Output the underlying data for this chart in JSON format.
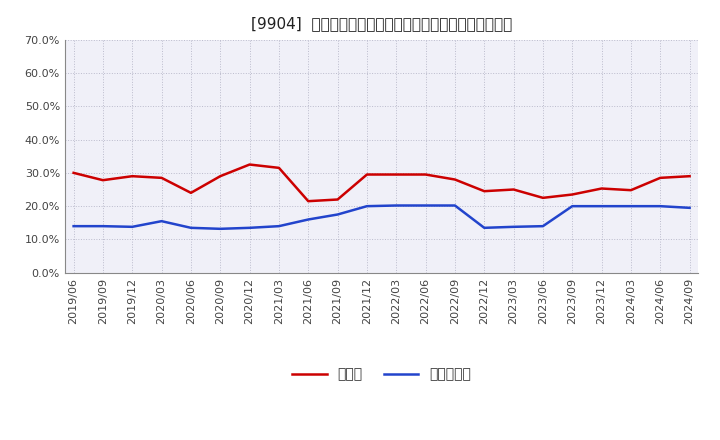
{
  "title": "[9904]  現預金、有利子負債の総資産に対する比率の推移",
  "dates": [
    "2019/06",
    "2019/09",
    "2019/12",
    "2020/03",
    "2020/06",
    "2020/09",
    "2020/12",
    "2021/03",
    "2021/06",
    "2021/09",
    "2021/12",
    "2022/03",
    "2022/06",
    "2022/09",
    "2022/12",
    "2023/03",
    "2023/06",
    "2023/09",
    "2023/12",
    "2024/03",
    "2024/06",
    "2024/09"
  ],
  "genkin": [
    0.3,
    0.278,
    0.29,
    0.285,
    0.24,
    0.29,
    0.325,
    0.315,
    0.215,
    0.22,
    0.295,
    0.295,
    0.295,
    0.28,
    0.245,
    0.25,
    0.225,
    0.235,
    0.253,
    0.248,
    0.285,
    0.29
  ],
  "yuriko": [
    0.14,
    0.14,
    0.138,
    0.155,
    0.135,
    0.132,
    0.135,
    0.14,
    0.16,
    0.175,
    0.2,
    0.202,
    0.202,
    0.202,
    0.135,
    0.138,
    0.14,
    0.2,
    0.2,
    0.2,
    0.2,
    0.195
  ],
  "genkin_color": "#cc0000",
  "yuriko_color": "#2244cc",
  "bg_color": "#ffffff",
  "plot_bg_color": "#f0f0f8",
  "grid_color": "#bbbbcc",
  "ylim": [
    0.0,
    0.7
  ],
  "yticks": [
    0.0,
    0.1,
    0.2,
    0.3,
    0.4,
    0.5,
    0.6,
    0.7
  ],
  "legend_genkin": "現預金",
  "legend_yuriko": "有利子負債",
  "title_fontsize": 11,
  "axis_fontsize": 8,
  "legend_fontsize": 10,
  "linewidth": 1.8
}
